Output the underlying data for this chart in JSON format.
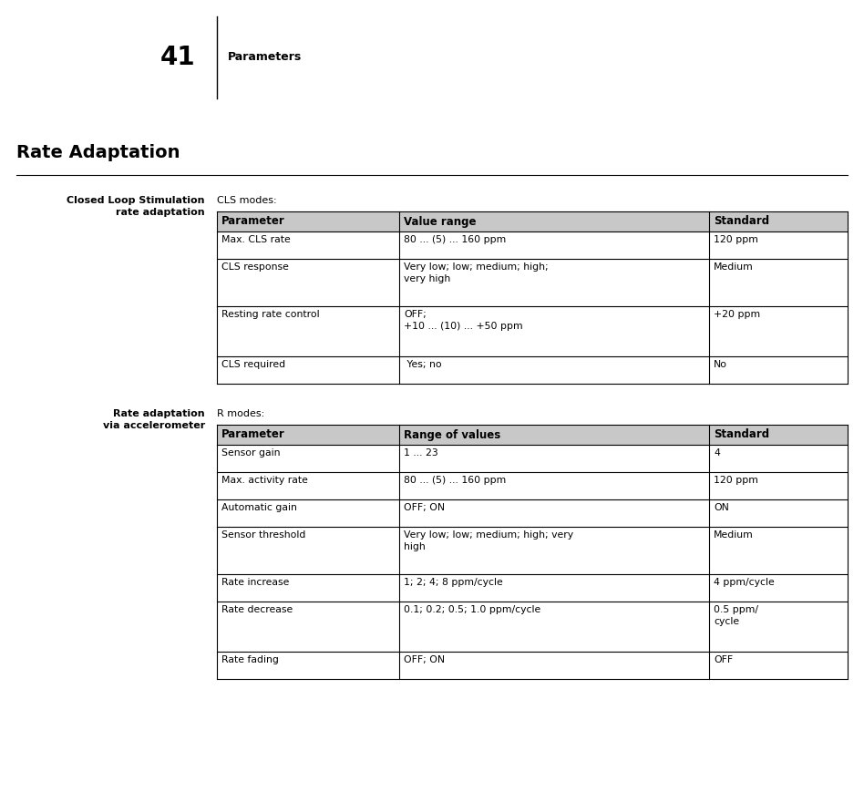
{
  "page_number": "41",
  "page_label": "Parameters",
  "section_title": "Rate Adaptation",
  "section1_label": "Closed Loop Stimulation\nrate adaptation",
  "section1_subtitle": "CLS modes:",
  "table1_headers": [
    "Parameter",
    "Value range",
    "Standard"
  ],
  "table1_rows": [
    [
      "Max. CLS rate",
      "80 ... (5) ... 160 ppm",
      "120 ppm"
    ],
    [
      "CLS response",
      "Very low; low; medium; high;\nvery high",
      "Medium"
    ],
    [
      "Resting rate control",
      "OFF;\n+10 ... (10) ... +50 ppm",
      "+20 ppm"
    ],
    [
      "CLS required",
      " Yes; no",
      "No"
    ]
  ],
  "section2_label": "Rate adaptation\nvia accelerometer",
  "section2_subtitle": "R modes:",
  "table2_headers": [
    "Parameter",
    "Range of values",
    "Standard"
  ],
  "table2_rows": [
    [
      "Sensor gain",
      "1 ... 23",
      "4"
    ],
    [
      "Max. activity rate",
      "80 ... (5) ... 160 ppm",
      "120 ppm"
    ],
    [
      "Automatic gain",
      "OFF; ON",
      "ON"
    ],
    [
      "Sensor threshold",
      "Very low; low; medium; high; very\nhigh",
      "Medium"
    ],
    [
      "Rate increase",
      "1; 2; 4; 8 ppm/cycle",
      "4 ppm/cycle"
    ],
    [
      "Rate decrease",
      "0.1; 0.2; 0.5; 1.0 ppm/cycle",
      "0.5 ppm/\ncycle"
    ],
    [
      "Rate fading",
      "OFF; ON",
      "OFF"
    ]
  ],
  "bg_color": "#ffffff",
  "header_bg_color": "#c8c8c8",
  "line_color": "#000000",
  "text_color": "#000000",
  "figsize": [
    9.48,
    8.69
  ],
  "dpi": 100
}
